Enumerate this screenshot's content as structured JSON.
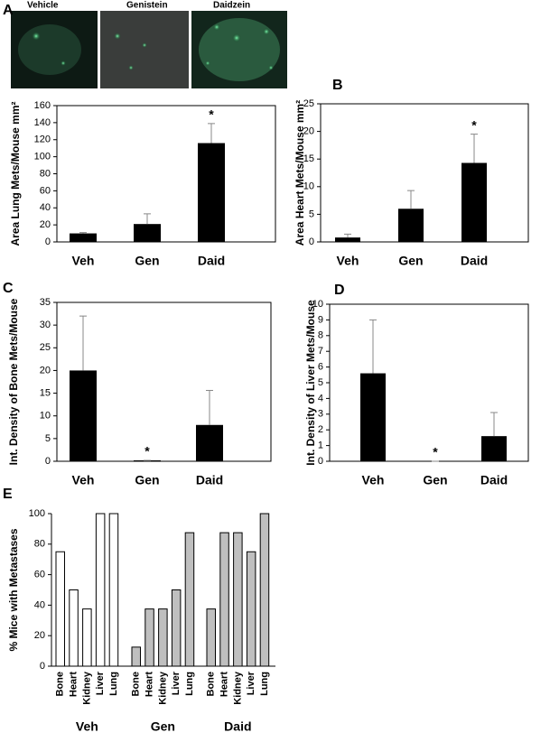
{
  "images": {
    "labels": [
      "Vehicle",
      "Genistein",
      "Daidzein"
    ]
  },
  "chart_data": [
    {
      "type": "bar",
      "label": "A",
      "y_label": "Area Lung Mets/Mouse mm²",
      "categories": [
        "Veh",
        "Gen",
        "Daid"
      ],
      "values": [
        10,
        21,
        116
      ],
      "errors": [
        1,
        12,
        23
      ],
      "markers": [
        null,
        null,
        "*"
      ],
      "color": "#000000",
      "ylim": [
        0,
        160
      ],
      "yticks": [
        0,
        20,
        40,
        60,
        80,
        100,
        120,
        140,
        160
      ],
      "frame": true
    },
    {
      "type": "bar",
      "label": "B",
      "y_label": "Area Heart Mets/Mouse mm²",
      "categories": [
        "Veh",
        "Gen",
        "Daid"
      ],
      "values": [
        0.8,
        6,
        14.3
      ],
      "errors": [
        0.6,
        3.3,
        5.2
      ],
      "markers": [
        null,
        null,
        "*"
      ],
      "color": "#000000",
      "ylim": [
        0,
        25
      ],
      "yticks": [
        0,
        5,
        10,
        15,
        20,
        25
      ],
      "frame": true
    },
    {
      "type": "bar",
      "label": "C",
      "y_label": "Int. Density of Bone Mets/Mouse",
      "categories": [
        "Veh",
        "Gen",
        "Daid"
      ],
      "values": [
        20,
        0.2,
        8
      ],
      "errors": [
        12,
        0,
        7.6
      ],
      "markers": [
        null,
        "*",
        null
      ],
      "color": "#000000",
      "ylim": [
        0,
        35
      ],
      "yticks": [
        0,
        5,
        10,
        15,
        20,
        25,
        30,
        35
      ],
      "frame": true
    },
    {
      "type": "bar",
      "label": "D",
      "y_label": "Int. Density of Liver Mets/Mouse",
      "categories": [
        "Veh",
        "Gen",
        "Daid"
      ],
      "values": [
        5.6,
        0,
        1.6
      ],
      "errors": [
        3.4,
        0,
        1.5
      ],
      "markers": [
        null,
        "*",
        null
      ],
      "color": "#000000",
      "ylim": [
        0,
        10
      ],
      "yticks": [
        0,
        1,
        2,
        3,
        4,
        5,
        6,
        7,
        8,
        9,
        10
      ],
      "frame": true
    },
    {
      "type": "grouped_bar",
      "label": "E",
      "y_label": "% Mice with Metastases",
      "categories": [
        "Bone",
        "Heart",
        "Kidney",
        "Liver",
        "Lung"
      ],
      "series": [
        {
          "name": "Veh",
          "color": "#ffffff",
          "values": [
            75,
            50,
            37.5,
            100,
            100
          ]
        },
        {
          "name": "Gen",
          "color": "#bfbfbf",
          "values": [
            12.5,
            37.5,
            37.5,
            50,
            87.5
          ]
        },
        {
          "name": "Daid",
          "color": "#bfbfbf",
          "values": [
            37.5,
            87.5,
            87.5,
            75,
            100
          ]
        }
      ],
      "ylim": [
        0,
        100
      ],
      "yticks": [
        0,
        20,
        40,
        60,
        80,
        100
      ],
      "frame": false
    }
  ]
}
